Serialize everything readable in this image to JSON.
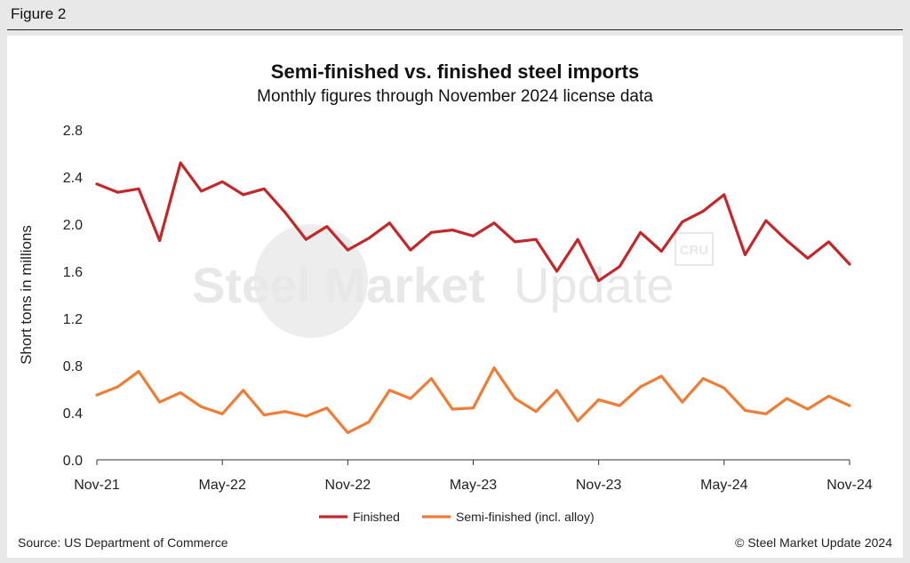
{
  "figure_label": "Figure 2",
  "footer": {
    "source": "Source: US Department of Commerce",
    "copyright": "© Steel Market Update 2024"
  },
  "watermark": {
    "text_bold": "Steel Market",
    "text_light": "Update",
    "badge": "CRU"
  },
  "colors": {
    "finished": "#c4272a",
    "semi": "#ef7d36"
  },
  "chart_data": {
    "type": "line",
    "title": "Semi-finished vs. finished steel imports",
    "subtitle": "Monthly figures through November 2024 license data",
    "ylabel": "Short tons in millions",
    "xlabel": "",
    "ylim": [
      0,
      2.8
    ],
    "yticks": [
      "0.0",
      "0.4",
      "0.8",
      "1.2",
      "1.6",
      "2.0",
      "2.4",
      "2.8"
    ],
    "x": [
      "Nov-21",
      "Dec-21",
      "Jan-22",
      "Feb-22",
      "Mar-22",
      "Apr-22",
      "May-22",
      "Jun-22",
      "Jul-22",
      "Aug-22",
      "Sep-22",
      "Oct-22",
      "Nov-22",
      "Dec-22",
      "Jan-23",
      "Feb-23",
      "Mar-23",
      "Apr-23",
      "May-23",
      "Jun-23",
      "Jul-23",
      "Aug-23",
      "Sep-23",
      "Oct-23",
      "Nov-23",
      "Dec-23",
      "Jan-24",
      "Feb-24",
      "Mar-24",
      "Apr-24",
      "May-24",
      "Jun-24",
      "Jul-24",
      "Aug-24",
      "Sep-24",
      "Oct-24",
      "Nov-24"
    ],
    "xtick_labels": [
      "Nov-21",
      "May-22",
      "Nov-22",
      "May-23",
      "Nov-23",
      "May-24",
      "Nov-24"
    ],
    "grid": false,
    "legend_position": "bottom",
    "series": [
      {
        "name": "Finished",
        "values": [
          2.34,
          2.27,
          2.3,
          1.86,
          2.52,
          2.28,
          2.36,
          2.25,
          2.3,
          2.1,
          1.87,
          1.98,
          1.78,
          1.88,
          2.01,
          1.78,
          1.93,
          1.95,
          1.9,
          2.01,
          1.85,
          1.87,
          1.6,
          1.87,
          1.52,
          1.64,
          1.93,
          1.77,
          2.02,
          2.11,
          2.25,
          1.74,
          2.03,
          1.86,
          1.71,
          1.85,
          1.66
        ]
      },
      {
        "name": "Semi-finished (incl. alloy)",
        "values": [
          0.55,
          0.62,
          0.75,
          0.49,
          0.57,
          0.45,
          0.39,
          0.59,
          0.38,
          0.41,
          0.37,
          0.44,
          0.23,
          0.32,
          0.59,
          0.52,
          0.69,
          0.43,
          0.44,
          0.78,
          0.52,
          0.41,
          0.59,
          0.33,
          0.51,
          0.46,
          0.62,
          0.71,
          0.49,
          0.69,
          0.61,
          0.42,
          0.39,
          0.52,
          0.43,
          0.54,
          0.46
        ]
      }
    ]
  }
}
